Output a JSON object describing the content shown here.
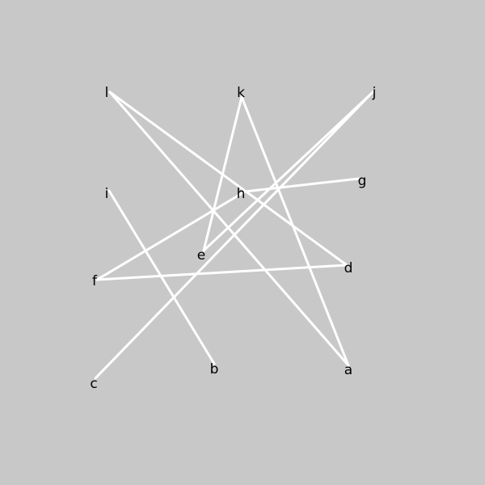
{
  "diagram": {
    "background": "#c8c8c8",
    "edge_color": "#ffffff",
    "label_color": "#000000",
    "nodes": [
      {
        "id": "a",
        "label": "a"
      },
      {
        "id": "b",
        "label": "b"
      },
      {
        "id": "c",
        "label": "c"
      },
      {
        "id": "d",
        "label": "d"
      },
      {
        "id": "e",
        "label": "e"
      },
      {
        "id": "f",
        "label": "f"
      },
      {
        "id": "g",
        "label": "g"
      },
      {
        "id": "h",
        "label": "h"
      },
      {
        "id": "i",
        "label": "i"
      },
      {
        "id": "j",
        "label": "j"
      },
      {
        "id": "k",
        "label": "k"
      },
      {
        "id": "l",
        "label": "l"
      }
    ],
    "edges": [
      [
        "l",
        "a"
      ],
      [
        "l",
        "d"
      ],
      [
        "k",
        "e"
      ],
      [
        "k",
        "a"
      ],
      [
        "j",
        "e"
      ],
      [
        "j",
        "c"
      ],
      [
        "h",
        "g"
      ],
      [
        "h",
        "f"
      ],
      [
        "f",
        "d"
      ],
      [
        "i",
        "b"
      ]
    ]
  }
}
